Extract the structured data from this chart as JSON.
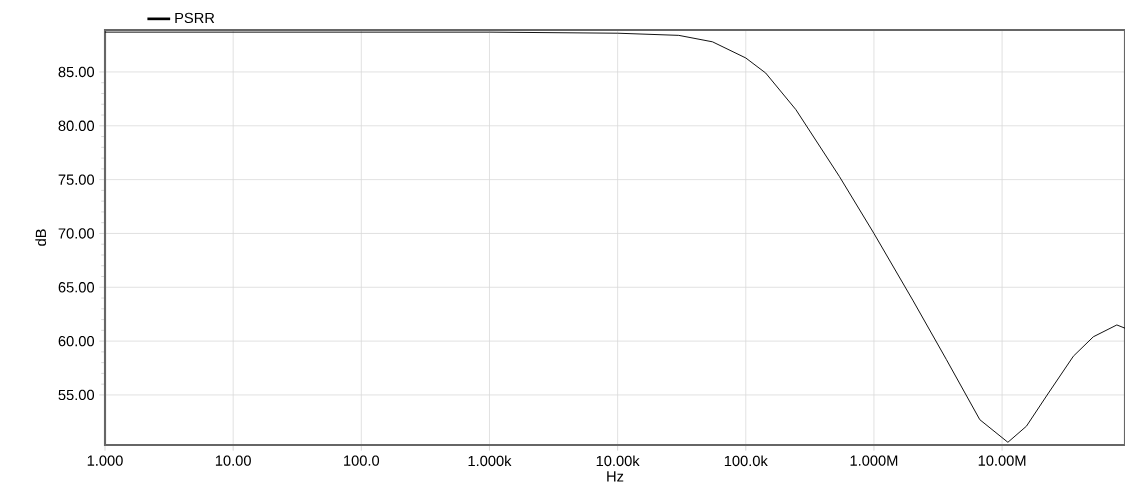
{
  "chart_data": {
    "type": "line",
    "xlabel": "Hz",
    "ylabel": "dB",
    "log": "x",
    "grid": true,
    "legend": "top left",
    "marker": "none",
    "line_style": "solid",
    "xlim": [
      1,
      91000000
    ],
    "ylim": [
      50.35,
      88.9
    ],
    "xticks": [
      {
        "value": 1,
        "label": "1.000"
      },
      {
        "value": 10,
        "label": "10.00"
      },
      {
        "value": 100,
        "label": "100.0"
      },
      {
        "value": 1000,
        "label": "1.000k"
      },
      {
        "value": 10000,
        "label": "10.00k"
      },
      {
        "value": 100000,
        "label": "100.0k"
      },
      {
        "value": 1000000,
        "label": "1.000M"
      },
      {
        "value": 10000000,
        "label": "10.00M"
      }
    ],
    "yticks": [
      {
        "value": 55,
        "label": "55.00"
      },
      {
        "value": 60,
        "label": "60.00"
      },
      {
        "value": 65,
        "label": "65.00"
      },
      {
        "value": 70,
        "label": "70.00"
      },
      {
        "value": 75,
        "label": "75.00"
      },
      {
        "value": 80,
        "label": "80.00"
      },
      {
        "value": 85,
        "label": "85.00"
      }
    ],
    "x": [
      1,
      10,
      100,
      1000,
      10000,
      30000,
      55000,
      100000,
      143000,
      246000,
      537000,
      1000000,
      2010000,
      3670000,
      6700000,
      11100000,
      15500000,
      22200000,
      36000000,
      51500000,
      78600000,
      91000000
    ],
    "series": [
      {
        "name": "PSRR",
        "color": "#000000",
        "values": [
          88.7,
          88.7,
          88.7,
          88.7,
          88.6,
          88.4,
          87.8,
          86.3,
          84.9,
          81.5,
          75.3,
          70.0,
          63.8,
          58.3,
          52.7,
          50.6,
          52.1,
          54.9,
          58.6,
          60.4,
          61.5,
          61.2
        ]
      }
    ]
  }
}
